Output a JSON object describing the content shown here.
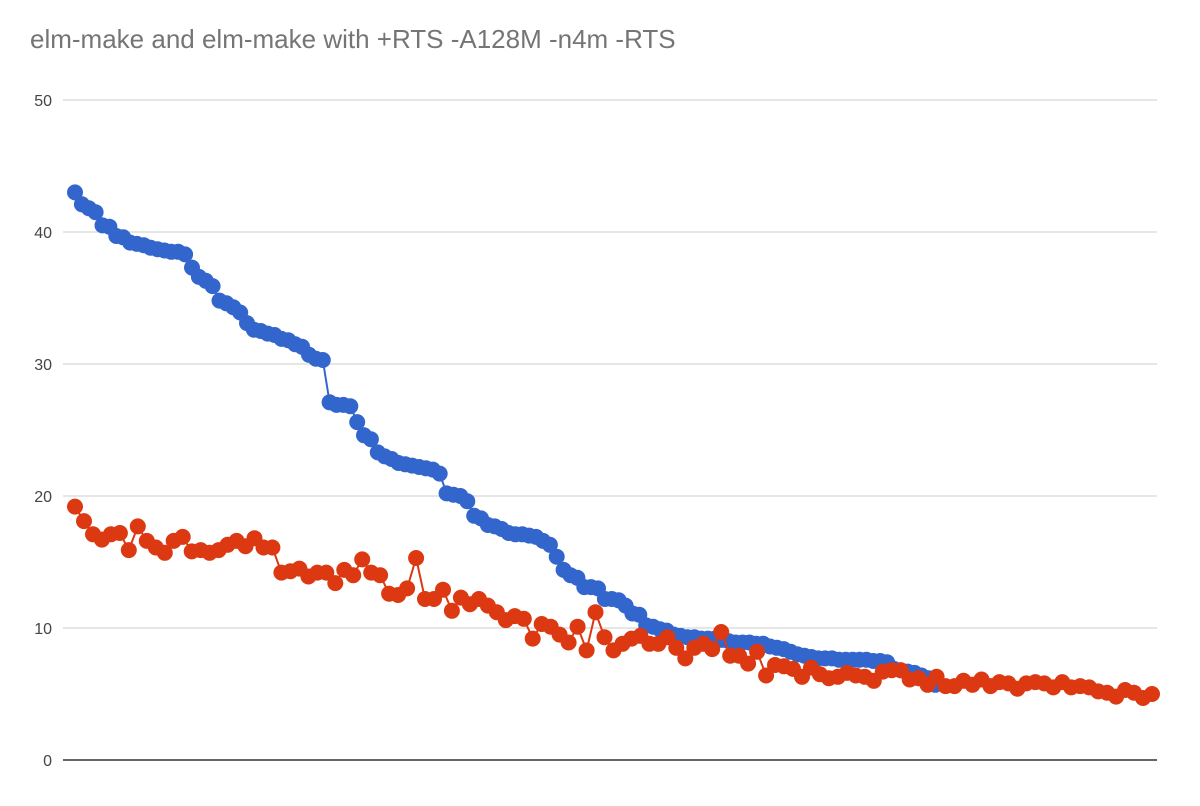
{
  "chart_data": {
    "type": "line",
    "title": "elm-make and elm-make with +RTS -A128M -n4m -RTS",
    "xlabel": "",
    "ylabel": "",
    "ylim": [
      0,
      50
    ],
    "yticks": [
      0,
      10,
      20,
      30,
      40,
      50
    ],
    "grid": true,
    "legend": "none",
    "point_count": 160,
    "series": [
      {
        "color": "#3366cc",
        "values": [
          43,
          42.1,
          41.8,
          41.5,
          40.5,
          40.4,
          39.7,
          39.6,
          39.2,
          39.1,
          39.0,
          38.8,
          38.7,
          38.6,
          38.5,
          38.5,
          38.3,
          37.3,
          36.6,
          36.3,
          35.9,
          34.8,
          34.6,
          34.3,
          33.9,
          33.1,
          32.6,
          32.5,
          32.3,
          32.2,
          31.9,
          31.8,
          31.5,
          31.3,
          30.7,
          30.4,
          30.3,
          27.1,
          26.9,
          26.9,
          26.8,
          25.6,
          24.6,
          24.3,
          23.3,
          23.0,
          22.8,
          22.5,
          22.4,
          22.3,
          22.2,
          22.1,
          22.0,
          21.7,
          20.2,
          20.1,
          20.0,
          19.6,
          18.5,
          18.3,
          17.8,
          17.7,
          17.5,
          17.2,
          17.1,
          17.1,
          17.0,
          16.9,
          16.6,
          16.3,
          15.4,
          14.4,
          14.0,
          13.8,
          13.1,
          13.1,
          13.0,
          12.2,
          12.2,
          12.1,
          11.7,
          11.1,
          11.0,
          10.2,
          10.1,
          9.9,
          9.8,
          9.5,
          9.4,
          9.3,
          9.3,
          9.2,
          9.2,
          9.2,
          9.1,
          9.0,
          8.9,
          8.9,
          8.9,
          8.8,
          8.8,
          8.6,
          8.5,
          8.4,
          8.2,
          8.0,
          7.9,
          7.8,
          7.7,
          7.7,
          7.7,
          7.6,
          7.6,
          7.6,
          7.6,
          7.6,
          7.5,
          7.5,
          7.4,
          6.9,
          6.8,
          6.7,
          6.6,
          6.4,
          6.2,
          5.7
        ],
        "x_end": 127
      },
      {
        "color": "#dc3912",
        "values": [
          19.2,
          18.1,
          17.1,
          16.7,
          17.1,
          17.2,
          15.9,
          17.7,
          16.6,
          16.1,
          15.7,
          16.6,
          16.9,
          15.8,
          15.9,
          15.7,
          15.9,
          16.3,
          16.6,
          16.2,
          16.8,
          16.1,
          16.1,
          14.2,
          14.3,
          14.5,
          13.9,
          14.2,
          14.2,
          13.4,
          14.4,
          14.0,
          15.2,
          14.2,
          14.0,
          12.6,
          12.5,
          13.0,
          15.3,
          12.2,
          12.2,
          12.9,
          11.3,
          12.3,
          11.8,
          12.2,
          11.7,
          11.2,
          10.6,
          10.9,
          10.7,
          9.2,
          10.3,
          10.1,
          9.5,
          8.9,
          10.1,
          8.3,
          11.2,
          9.3,
          8.3,
          8.8,
          9.2,
          9.4,
          8.8,
          8.8,
          9.3,
          8.5,
          7.7,
          8.5,
          8.8,
          8.4,
          9.7,
          7.9,
          7.9,
          7.3,
          8.2,
          6.4,
          7.2,
          7.1,
          6.9,
          6.3,
          7.0,
          6.5,
          6.2,
          6.3,
          6.6,
          6.4,
          6.3,
          6.0,
          6.7,
          6.8,
          6.8,
          6.1,
          6.2,
          5.7,
          6.3,
          5.6,
          5.6,
          6.0,
          5.7,
          6.1,
          5.6,
          5.9,
          5.8,
          5.4,
          5.8,
          5.9,
          5.8,
          5.5,
          5.9,
          5.5,
          5.6,
          5.5,
          5.2,
          5.1,
          4.8,
          5.3,
          5.1,
          4.7,
          5.0
        ],
        "x_end": 159
      }
    ]
  }
}
